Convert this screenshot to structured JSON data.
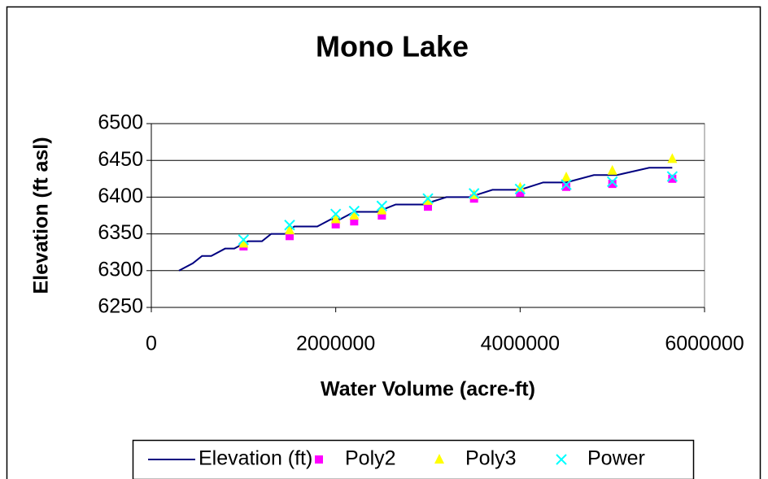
{
  "chart_data": {
    "type": "scatter",
    "title": "Mono Lake",
    "x_label": "Water Volume (acre-ft)",
    "y_label": "Elevation (ft asl)",
    "xlim": [
      0,
      6000000
    ],
    "xticks": [
      0,
      2000000,
      4000000,
      6000000
    ],
    "ylim": [
      6250,
      6500
    ],
    "yticks": [
      6250,
      6300,
      6350,
      6400,
      6450,
      6500
    ],
    "grid": true,
    "legend": "bottom",
    "series": [
      {
        "name": "Elevation (ft)",
        "color": "#000080",
        "marker": "line",
        "x": [
          300000,
          450000,
          550000,
          650000,
          800000,
          900000,
          1050000,
          1200000,
          1300000,
          1450000,
          1550000,
          1800000,
          1950000,
          2050000,
          2200000,
          2450000,
          2650000,
          2950000,
          3200000,
          3450000,
          3700000,
          4000000,
          4250000,
          4500000,
          4800000,
          5050000,
          5400000,
          5650000
        ],
        "values": [
          6300,
          6310,
          6320,
          6320,
          6330,
          6330,
          6340,
          6340,
          6350,
          6350,
          6360,
          6360,
          6370,
          6370,
          6380,
          6380,
          6390,
          6390,
          6400,
          6400,
          6410,
          6410,
          6420,
          6420,
          6430,
          6430,
          6440,
          6440
        ]
      },
      {
        "name": "Poly2",
        "color": "#ff00ff",
        "marker": "square",
        "x": [
          1000000,
          1500000,
          2000000,
          2200000,
          2500000,
          3000000,
          3500000,
          4000000,
          4500000,
          5000000,
          5650000
        ],
        "values": [
          6333,
          6347,
          6363,
          6367,
          6375,
          6387,
          6398,
          6406,
          6414,
          6418,
          6425
        ]
      },
      {
        "name": "Poly3",
        "color": "#ffff00",
        "marker": "triangle",
        "x": [
          1000000,
          1500000,
          2000000,
          2200000,
          2500000,
          3000000,
          3500000,
          4000000,
          4500000,
          5000000,
          5650000
        ],
        "values": [
          6337,
          6355,
          6370,
          6375,
          6382,
          6395,
          6403,
          6413,
          6427,
          6436,
          6452
        ]
      },
      {
        "name": "Power",
        "color": "#00ffff",
        "marker": "x",
        "x": [
          1000000,
          1500000,
          2000000,
          2200000,
          2500000,
          3000000,
          3500000,
          4000000,
          4500000,
          5000000,
          5650000
        ],
        "values": [
          6342,
          6362,
          6377,
          6381,
          6388,
          6398,
          6405,
          6411,
          6417,
          6421,
          6428
        ]
      }
    ]
  }
}
